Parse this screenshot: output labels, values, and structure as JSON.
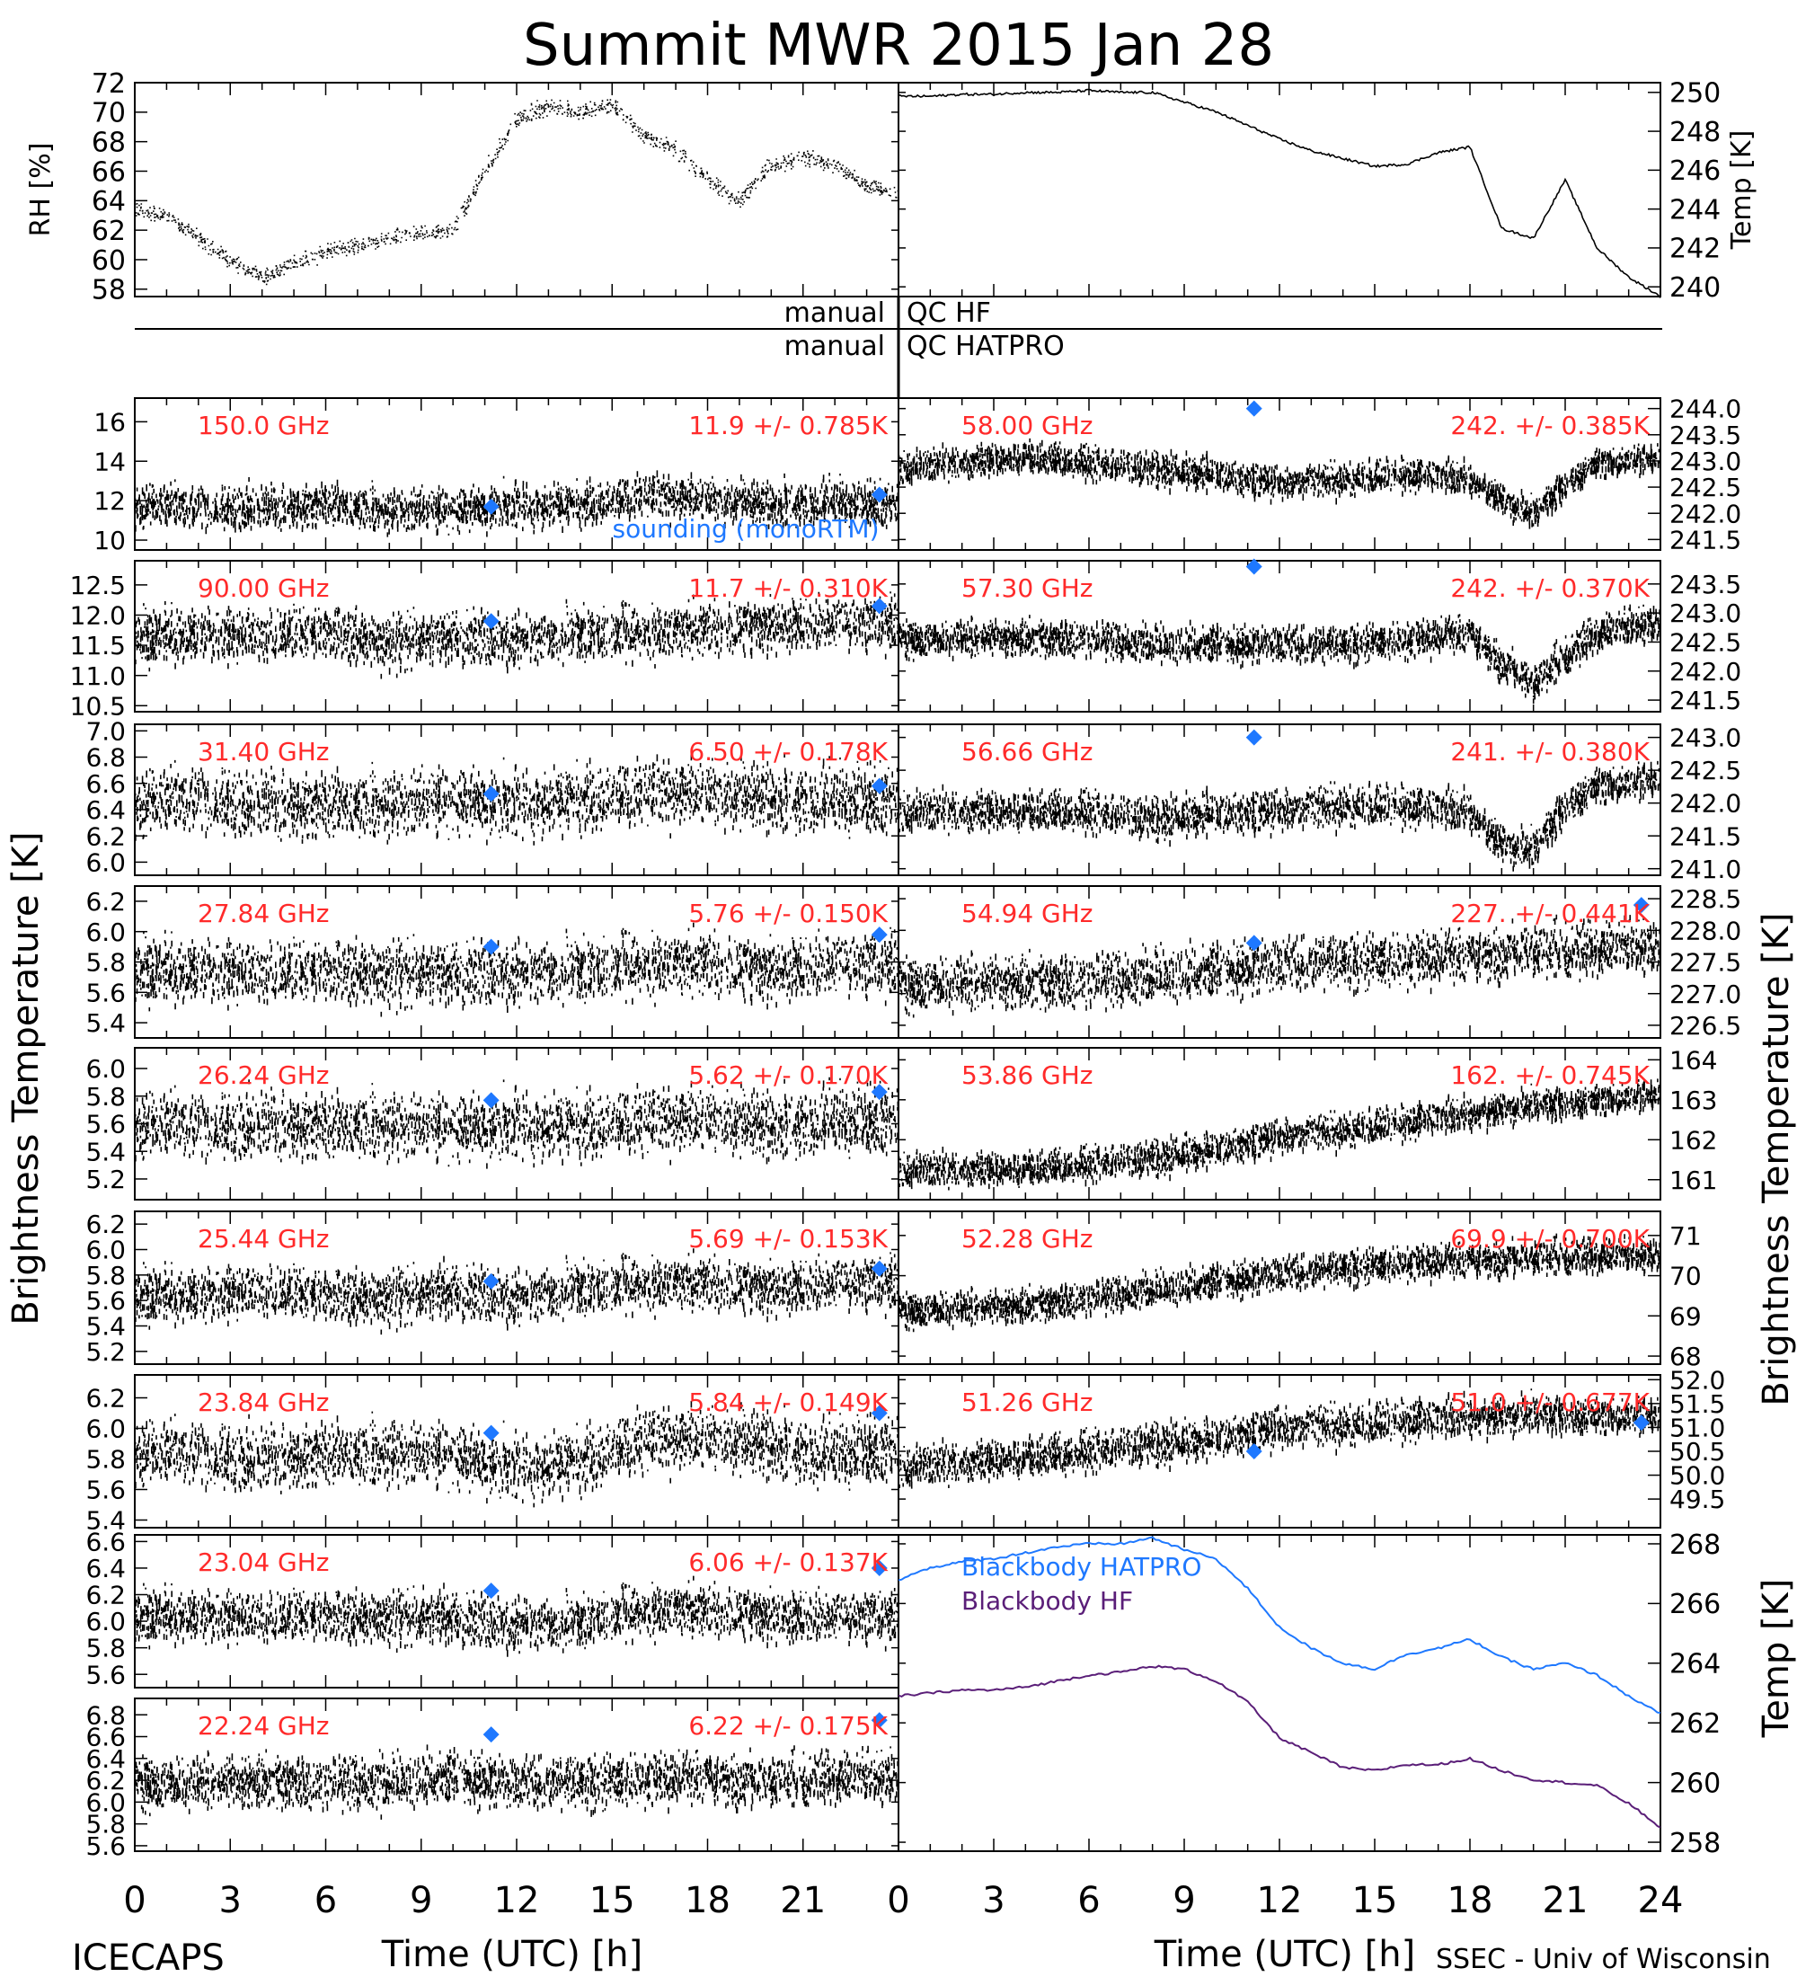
{
  "title": "Summit MWR 2015 Jan 28",
  "footer": {
    "left": "ICECAPS",
    "right": "SSEC - Univ of Wisconsin",
    "xlabel": "Time (UTC) [h]",
    "xticks": [
      "0",
      "3",
      "6",
      "9",
      "12",
      "15",
      "18",
      "21",
      "24"
    ]
  },
  "labels": {
    "left_big": "Brightness Temperature [K]",
    "right_big": "Brightness Temperature [K]",
    "right_mid": "Temp [K]"
  },
  "qc": {
    "line1_left": "manual",
    "line1_right": "QC HF",
    "line2_left": "manual",
    "line2_right": "QC HATPRO"
  },
  "colors": {
    "ink": "#000000",
    "label_red": "#ff2a2a",
    "sounding_blue": "#1e78ff",
    "hatpro_blue": "#1e78ff",
    "hf_purple": "#5a1e78"
  },
  "chart_data": [
    {
      "id": "rh",
      "type": "scatter",
      "ylabel": "RH [%]",
      "ylim": [
        57.5,
        72
      ],
      "yticks": [
        "58",
        "60",
        "62",
        "64",
        "66",
        "68",
        "70",
        "72"
      ],
      "x": [
        0,
        1,
        2,
        3,
        4,
        5,
        6,
        7,
        8,
        9,
        10,
        11,
        12,
        13,
        14,
        15,
        16,
        17,
        18,
        19,
        20,
        21,
        22,
        23,
        24
      ],
      "y": [
        63.5,
        63,
        61.5,
        60,
        58.8,
        59.8,
        60.5,
        61,
        61.5,
        61.8,
        62,
        66,
        69.5,
        70.5,
        70,
        70.5,
        68.5,
        67.5,
        65.5,
        64,
        66.5,
        67,
        66.5,
        65,
        64.5
      ]
    },
    {
      "id": "temp",
      "type": "line",
      "ylabel": "Temp [K]",
      "ylim": [
        239.5,
        250.5
      ],
      "yticks": [
        "240",
        "242",
        "244",
        "246",
        "248",
        "250"
      ],
      "x": [
        0,
        1,
        2,
        3,
        4,
        5,
        6,
        7,
        8,
        9,
        10,
        11,
        12,
        13,
        14,
        15,
        16,
        17,
        18,
        19,
        20,
        21,
        22,
        23,
        24
      ],
      "y": [
        249.8,
        249.8,
        249.9,
        249.9,
        250,
        250,
        250.1,
        250,
        250,
        249.5,
        249,
        248.3,
        247.6,
        247,
        246.6,
        246.2,
        246.3,
        246.9,
        247.2,
        243,
        242.5,
        245.5,
        242,
        240.5,
        239.5
      ]
    },
    {
      "id": "tb-150",
      "type": "scatter",
      "side": "left",
      "freq_label": "150.0 GHz",
      "stat_label": "11.9 +/- 0.785K",
      "ylim": [
        9.5,
        17.2
      ],
      "yticks": [
        "10",
        "12",
        "14",
        "16"
      ],
      "x": [
        0,
        2,
        4,
        6,
        8,
        10,
        12,
        14,
        16,
        18,
        20,
        22,
        24
      ],
      "y": [
        11.8,
        11.8,
        11.7,
        11.9,
        11.6,
        11.7,
        11.8,
        11.9,
        12.4,
        12.2,
        11.9,
        12.1,
        11.9
      ],
      "noise": 0.78,
      "sounding": [
        [
          11.2,
          11.7
        ],
        [
          23.4,
          12.3
        ]
      ],
      "annotation": "sounding (monoRTM)"
    },
    {
      "id": "tb-58",
      "type": "scatter",
      "side": "right",
      "freq_label": "58.00 GHz",
      "stat_label": "242. +/- 0.385K",
      "ylim": [
        241.3,
        244.2
      ],
      "yticks": [
        "241.5",
        "242.0",
        "242.5",
        "243.0",
        "243.5",
        "244.0"
      ],
      "x": [
        0,
        2,
        4,
        6,
        8,
        10,
        12,
        14,
        16,
        18,
        19,
        20,
        21,
        22,
        24
      ],
      "y": [
        242.9,
        243.0,
        243.1,
        243.0,
        242.9,
        242.8,
        242.6,
        242.7,
        242.8,
        242.7,
        242.3,
        242.0,
        242.6,
        243.0,
        243.1
      ],
      "noise": 0.22,
      "sounding": [
        [
          11.2,
          244.0
        ]
      ]
    },
    {
      "id": "tb-90",
      "type": "scatter",
      "side": "left",
      "freq_label": "90.00 GHz",
      "stat_label": "11.7 +/- 0.310K",
      "ylim": [
        10.4,
        12.9
      ],
      "yticks": [
        "10.5",
        "11.0",
        "11.5",
        "12.0",
        "12.5"
      ],
      "x": [
        0,
        2,
        4,
        6,
        8,
        10,
        12,
        14,
        16,
        18,
        20,
        22,
        24
      ],
      "y": [
        11.65,
        11.7,
        11.7,
        11.75,
        11.6,
        11.7,
        11.65,
        11.7,
        11.75,
        11.8,
        11.85,
        11.9,
        11.9
      ],
      "noise": 0.32,
      "sounding": [
        [
          11.2,
          11.9
        ],
        [
          23.4,
          12.15
        ]
      ]
    },
    {
      "id": "tb-57.3",
      "type": "scatter",
      "side": "right",
      "freq_label": "57.30 GHz",
      "stat_label": "242. +/- 0.370K",
      "ylim": [
        241.3,
        243.9
      ],
      "yticks": [
        "241.5",
        "242.0",
        "242.5",
        "243.0",
        "243.5"
      ],
      "x": [
        0,
        2,
        4,
        6,
        8,
        10,
        12,
        14,
        16,
        18,
        19,
        20,
        21,
        22,
        24
      ],
      "y": [
        242.6,
        242.6,
        242.6,
        242.6,
        242.5,
        242.5,
        242.5,
        242.5,
        242.6,
        242.7,
        242.2,
        241.8,
        242.3,
        242.7,
        242.9
      ],
      "noise": 0.22,
      "sounding": [
        [
          11.2,
          243.8
        ]
      ]
    },
    {
      "id": "tb-31.4",
      "type": "scatter",
      "side": "left",
      "freq_label": "31.40 GHz",
      "stat_label": "6.50 +/- 0.178K",
      "ylim": [
        5.9,
        7.05
      ],
      "yticks": [
        "6.0",
        "6.2",
        "6.4",
        "6.6",
        "6.8",
        "7.0"
      ],
      "x": [
        0,
        2,
        4,
        6,
        8,
        10,
        12,
        14,
        16,
        18,
        20,
        22,
        24
      ],
      "y": [
        6.45,
        6.5,
        6.45,
        6.45,
        6.45,
        6.5,
        6.45,
        6.5,
        6.55,
        6.55,
        6.5,
        6.5,
        6.5
      ],
      "noise": 0.18,
      "sounding": [
        [
          11.2,
          6.52
        ],
        [
          23.4,
          6.58
        ]
      ]
    },
    {
      "id": "tb-56.66",
      "type": "scatter",
      "side": "right",
      "freq_label": "56.66 GHz",
      "stat_label": "241. +/- 0.380K",
      "ylim": [
        240.9,
        243.2
      ],
      "yticks": [
        "241.0",
        "241.5",
        "242.0",
        "242.5",
        "243.0"
      ],
      "x": [
        0,
        2,
        4,
        6,
        8,
        10,
        12,
        14,
        16,
        18,
        19,
        20,
        21,
        22,
        24
      ],
      "y": [
        241.9,
        241.9,
        241.9,
        241.9,
        241.8,
        241.9,
        241.9,
        242.0,
        242.0,
        241.9,
        241.4,
        241.3,
        242.0,
        242.3,
        242.4
      ],
      "noise": 0.22,
      "sounding": [
        [
          11.2,
          243.0
        ]
      ]
    },
    {
      "id": "tb-27.84",
      "type": "scatter",
      "side": "left",
      "freq_label": "27.84 GHz",
      "stat_label": "5.76 +/- 0.150K",
      "ylim": [
        5.3,
        6.3
      ],
      "yticks": [
        "5.4",
        "5.6",
        "5.8",
        "6.0",
        "6.2"
      ],
      "x": [
        0,
        2,
        4,
        6,
        8,
        10,
        12,
        14,
        16,
        18,
        20,
        22,
        24
      ],
      "y": [
        5.75,
        5.75,
        5.75,
        5.75,
        5.75,
        5.75,
        5.75,
        5.75,
        5.8,
        5.8,
        5.75,
        5.8,
        5.8
      ],
      "noise": 0.15,
      "sounding": [
        [
          11.2,
          5.9
        ],
        [
          23.4,
          5.98
        ]
      ]
    },
    {
      "id": "tb-54.94",
      "type": "scatter",
      "side": "right",
      "freq_label": "54.94 GHz",
      "stat_label": "227. +/- 0.441K",
      "ylim": [
        226.3,
        228.7
      ],
      "yticks": [
        "226.5",
        "227.0",
        "227.5",
        "228.0",
        "228.5"
      ],
      "x": [
        0,
        4,
        8,
        12,
        16,
        20,
        24
      ],
      "y": [
        227.2,
        227.2,
        227.3,
        227.5,
        227.6,
        227.7,
        227.8
      ],
      "noise": 0.3,
      "sounding": [
        [
          11.2,
          227.8
        ],
        [
          23.4,
          228.4
        ]
      ]
    },
    {
      "id": "tb-26.24",
      "type": "scatter",
      "side": "left",
      "freq_label": "26.24 GHz",
      "stat_label": "5.62 +/- 0.170K",
      "ylim": [
        5.05,
        6.15
      ],
      "yticks": [
        "5.2",
        "5.4",
        "5.6",
        "5.8",
        "6.0"
      ],
      "x": [
        0,
        2,
        4,
        6,
        8,
        10,
        12,
        14,
        16,
        18,
        20,
        22,
        24
      ],
      "y": [
        5.6,
        5.6,
        5.6,
        5.6,
        5.6,
        5.6,
        5.6,
        5.6,
        5.65,
        5.65,
        5.6,
        5.65,
        5.65
      ],
      "noise": 0.17,
      "sounding": [
        [
          11.2,
          5.77
        ],
        [
          23.4,
          5.83
        ]
      ]
    },
    {
      "id": "tb-53.86",
      "type": "scatter",
      "side": "right",
      "freq_label": "53.86 GHz",
      "stat_label": "162. +/- 0.745K",
      "ylim": [
        160.5,
        164.3
      ],
      "yticks": [
        "161",
        "162",
        "163",
        "164"
      ],
      "x": [
        0,
        4,
        8,
        12,
        16,
        20,
        24
      ],
      "y": [
        161.3,
        161.3,
        161.6,
        162.1,
        162.5,
        162.9,
        163.2
      ],
      "noise": 0.3
    },
    {
      "id": "tb-25.44",
      "type": "scatter",
      "side": "left",
      "freq_label": "25.44 GHz",
      "stat_label": "5.69 +/- 0.153K",
      "ylim": [
        5.1,
        6.3
      ],
      "yticks": [
        "5.2",
        "5.4",
        "5.6",
        "5.8",
        "6.0",
        "6.2"
      ],
      "x": [
        0,
        2,
        4,
        6,
        8,
        10,
        12,
        14,
        16,
        18,
        20,
        22,
        24
      ],
      "y": [
        5.65,
        5.65,
        5.7,
        5.65,
        5.65,
        5.7,
        5.65,
        5.7,
        5.75,
        5.75,
        5.7,
        5.75,
        5.75
      ],
      "noise": 0.15,
      "sounding": [
        [
          11.2,
          5.75
        ],
        [
          23.4,
          5.85
        ]
      ]
    },
    {
      "id": "tb-52.28",
      "type": "scatter",
      "side": "right",
      "freq_label": "52.28 GHz",
      "stat_label": "69.9 +/- 0.700K",
      "ylim": [
        67.8,
        71.6
      ],
      "yticks": [
        "68",
        "69",
        "70",
        "71"
      ],
      "x": [
        0,
        4,
        8,
        12,
        16,
        20,
        24
      ],
      "y": [
        69.2,
        69.3,
        69.7,
        70.1,
        70.4,
        70.5,
        70.6
      ],
      "noise": 0.3
    },
    {
      "id": "tb-23.84",
      "type": "scatter",
      "side": "left",
      "freq_label": "23.84 GHz",
      "stat_label": "5.84 +/- 0.149K",
      "ylim": [
        5.35,
        6.35
      ],
      "yticks": [
        "5.4",
        "5.6",
        "5.8",
        "6.0",
        "6.2"
      ],
      "x": [
        0,
        2,
        4,
        6,
        8,
        10,
        12,
        14,
        16,
        18,
        20,
        22,
        24
      ],
      "y": [
        5.85,
        5.85,
        5.8,
        5.85,
        5.85,
        5.85,
        5.75,
        5.8,
        5.95,
        5.95,
        5.9,
        5.85,
        5.9
      ],
      "noise": 0.15,
      "sounding": [
        [
          11.2,
          5.97
        ],
        [
          23.4,
          6.1
        ]
      ]
    },
    {
      "id": "tb-51.26",
      "type": "scatter",
      "side": "right",
      "freq_label": "51.26 GHz",
      "stat_label": "51.0 +/- 0.677K",
      "ylim": [
        48.9,
        52.1
      ],
      "yticks": [
        "49.5",
        "50.0",
        "50.5",
        "51.0",
        "51.5",
        "52.0"
      ],
      "x": [
        0,
        4,
        8,
        12,
        16,
        20,
        24
      ],
      "y": [
        50.2,
        50.4,
        50.7,
        51.0,
        51.2,
        51.3,
        51.3
      ],
      "noise": 0.3,
      "sounding": [
        [
          11.2,
          50.5
        ],
        [
          23.4,
          51.1
        ]
      ]
    },
    {
      "id": "tb-23.04",
      "type": "scatter",
      "side": "left",
      "freq_label": "23.04 GHz",
      "stat_label": "6.06 +/- 0.137K",
      "ylim": [
        5.5,
        6.65
      ],
      "yticks": [
        "5.6",
        "5.8",
        "6.0",
        "6.2",
        "6.4",
        "6.6"
      ],
      "x": [
        0,
        2,
        4,
        6,
        8,
        10,
        12,
        14,
        16,
        18,
        20,
        22,
        24
      ],
      "y": [
        6.05,
        6.05,
        6.05,
        6.05,
        6.05,
        6.05,
        6.0,
        6.0,
        6.1,
        6.1,
        6.05,
        6.05,
        6.05
      ],
      "noise": 0.14,
      "sounding": [
        [
          11.2,
          6.23
        ],
        [
          23.4,
          6.4
        ]
      ]
    },
    {
      "id": "tb-22.24",
      "type": "scatter",
      "side": "left",
      "freq_label": "22.24 GHz",
      "stat_label": "6.22 +/- 0.175K",
      "ylim": [
        5.55,
        6.95
      ],
      "yticks": [
        "5.6",
        "5.8",
        "6.0",
        "6.2",
        "6.4",
        "6.6",
        "6.8"
      ],
      "x": [
        0,
        2,
        4,
        6,
        8,
        10,
        12,
        14,
        16,
        18,
        20,
        22,
        24
      ],
      "y": [
        6.2,
        6.2,
        6.2,
        6.2,
        6.2,
        6.25,
        6.2,
        6.2,
        6.25,
        6.25,
        6.2,
        6.25,
        6.25
      ],
      "noise": 0.17,
      "sounding": [
        [
          11.2,
          6.62
        ],
        [
          23.4,
          6.75
        ]
      ]
    },
    {
      "id": "blackbody",
      "type": "line",
      "side": "right",
      "ylim": [
        257.7,
        268.3
      ],
      "yticks": [
        "258",
        "260",
        "262",
        "264",
        "266",
        "268"
      ],
      "x": [
        0,
        1,
        2,
        3,
        4,
        5,
        6,
        7,
        8,
        9,
        10,
        11,
        12,
        13,
        14,
        15,
        16,
        17,
        18,
        19,
        20,
        21,
        22,
        23,
        24
      ],
      "series": [
        {
          "name": "Blackbody HATPRO",
          "values": [
            266.8,
            267.2,
            267.4,
            267.5,
            267.7,
            267.9,
            268.0,
            268.0,
            268.2,
            267.8,
            267.5,
            266.5,
            265.2,
            264.5,
            264.0,
            263.8,
            264.3,
            264.5,
            264.8,
            264.2,
            263.8,
            264.0,
            263.6,
            262.9,
            262.3
          ]
        },
        {
          "name": "Blackbody HF",
          "values": [
            262.9,
            263.0,
            263.1,
            263.1,
            263.2,
            263.4,
            263.6,
            263.7,
            263.9,
            263.8,
            263.4,
            262.7,
            261.5,
            261.0,
            260.5,
            260.4,
            260.6,
            260.6,
            260.8,
            260.4,
            260.1,
            260.0,
            259.9,
            259.3,
            258.5
          ]
        }
      ]
    }
  ]
}
